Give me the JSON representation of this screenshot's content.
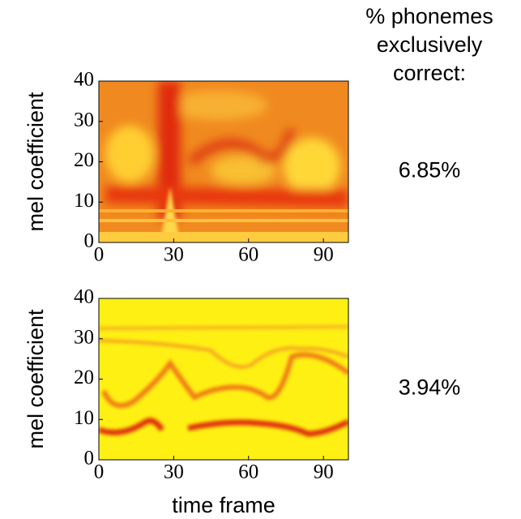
{
  "side_header": [
    "% phonemes",
    "exclusively",
    "correct:"
  ],
  "chart_data": [
    {
      "type": "heatmap",
      "ylabel": "mel coefficient",
      "annotation": "6.85%",
      "xlim": [
        0,
        100
      ],
      "ylim": [
        0,
        40
      ],
      "xticks": [
        0,
        30,
        60,
        90
      ],
      "yticks": [
        0,
        10,
        20,
        30,
        40
      ]
    },
    {
      "type": "heatmap",
      "ylabel": "mel coefficient",
      "xlabel": "time frame",
      "annotation": "3.94%",
      "xlim": [
        0,
        100
      ],
      "ylim": [
        0,
        40
      ],
      "xticks": [
        0,
        30,
        60,
        90
      ],
      "yticks": [
        0,
        10,
        20,
        30,
        40
      ]
    }
  ]
}
